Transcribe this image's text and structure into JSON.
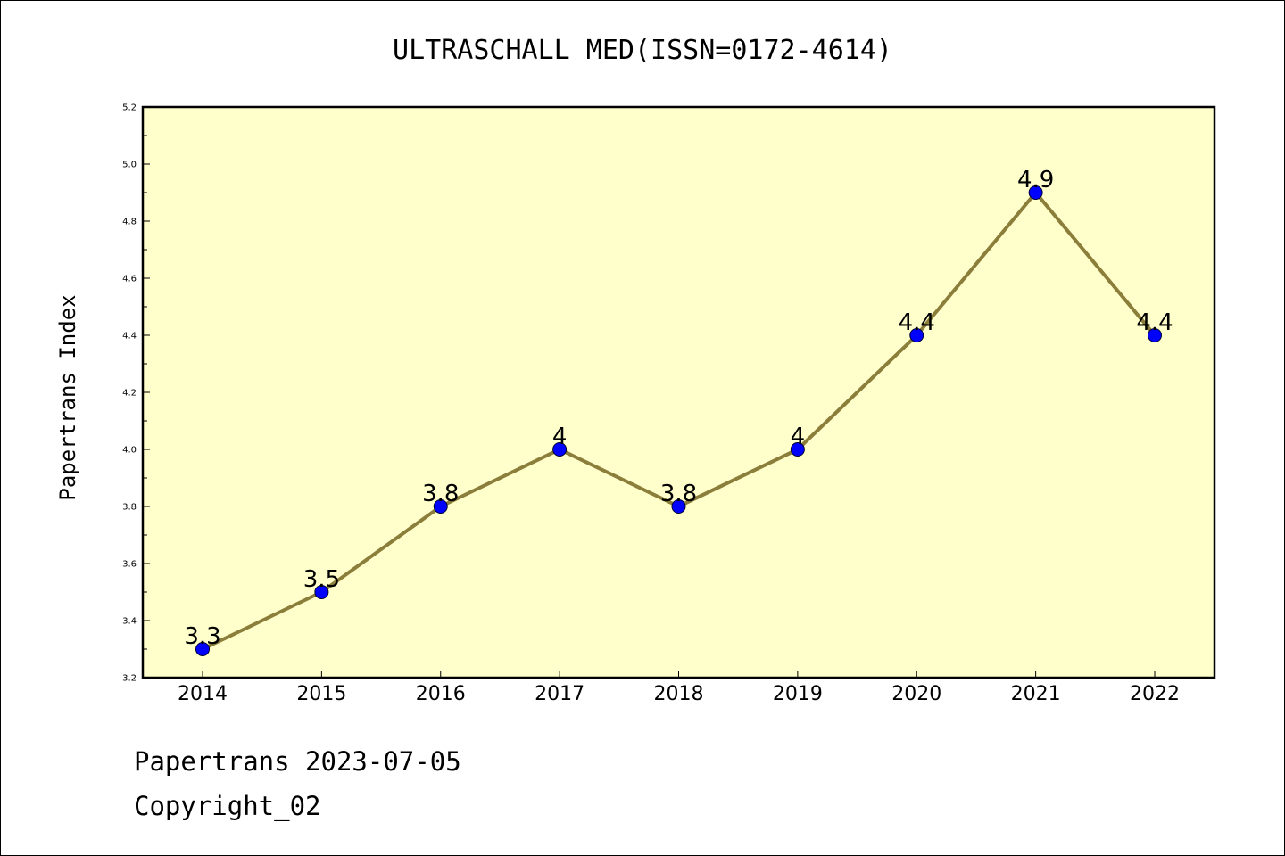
{
  "chart_data": {
    "type": "line",
    "title": "ULTRASCHALL MED(ISSN=0172-4614)",
    "xlabel": "",
    "ylabel": "Papertrans Index",
    "categories": [
      "2014",
      "2015",
      "2016",
      "2017",
      "2018",
      "2019",
      "2020",
      "2021",
      "2022"
    ],
    "values": [
      3.3,
      3.5,
      3.8,
      4.0,
      3.8,
      4.0,
      4.4,
      4.9,
      4.4
    ],
    "data_labels": [
      "3.3",
      "3.5",
      "3.8",
      "4",
      "3.8",
      "4",
      "4.4",
      "4.9",
      "4.4"
    ],
    "ylim": [
      3.2,
      5.2
    ],
    "yticks": [
      "3.2",
      "3.4",
      "3.6",
      "3.8",
      "4.0",
      "4.2",
      "4.4",
      "4.6",
      "4.8",
      "5.0",
      "5.2"
    ],
    "grid": false,
    "legend": "none"
  },
  "footer": {
    "line1": "Papertrans 2023-07-05",
    "line2": "Copyright_02"
  },
  "colors": {
    "plot_background": "#ffffcc",
    "line": "#8b7d3a",
    "marker": "#0000ff"
  }
}
